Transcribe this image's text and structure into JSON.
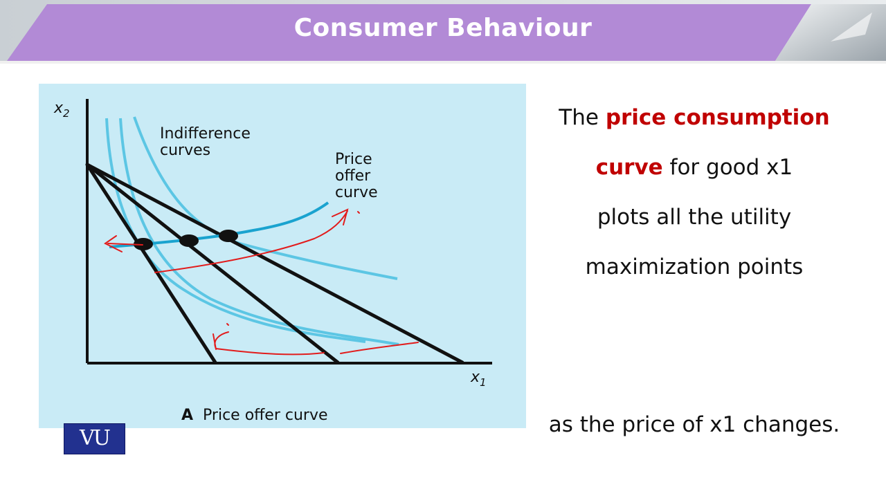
{
  "header": {
    "title": "Consumer Behaviour"
  },
  "diagram": {
    "y_axis_label": "x",
    "y_axis_subscript": "2",
    "x_axis_label": "x",
    "x_axis_subscript": "1",
    "indifference_label_line1": "Indifference",
    "indifference_label_line2": "curves",
    "offer_label_line1": "Price",
    "offer_label_line2": "offer",
    "offer_label_line3": "curve",
    "caption_letter": "A",
    "caption_text": "Price offer curve",
    "colors": {
      "panel_bg": "#c9ebf6",
      "curve": "#5cc6e4",
      "offer_curve": "#1aa3cf",
      "budget_line": "#111111",
      "annotation": "#e21c1c"
    }
  },
  "text": {
    "line1_plain": "The ",
    "line1_highlight": "price consumption",
    "line2_highlight": "curve",
    "line2_plain": " for good x1",
    "line3": "plots all the utility",
    "line4": "maximization points",
    "tail": "as the price of x1 changes."
  },
  "logo": {
    "text": "VU"
  }
}
